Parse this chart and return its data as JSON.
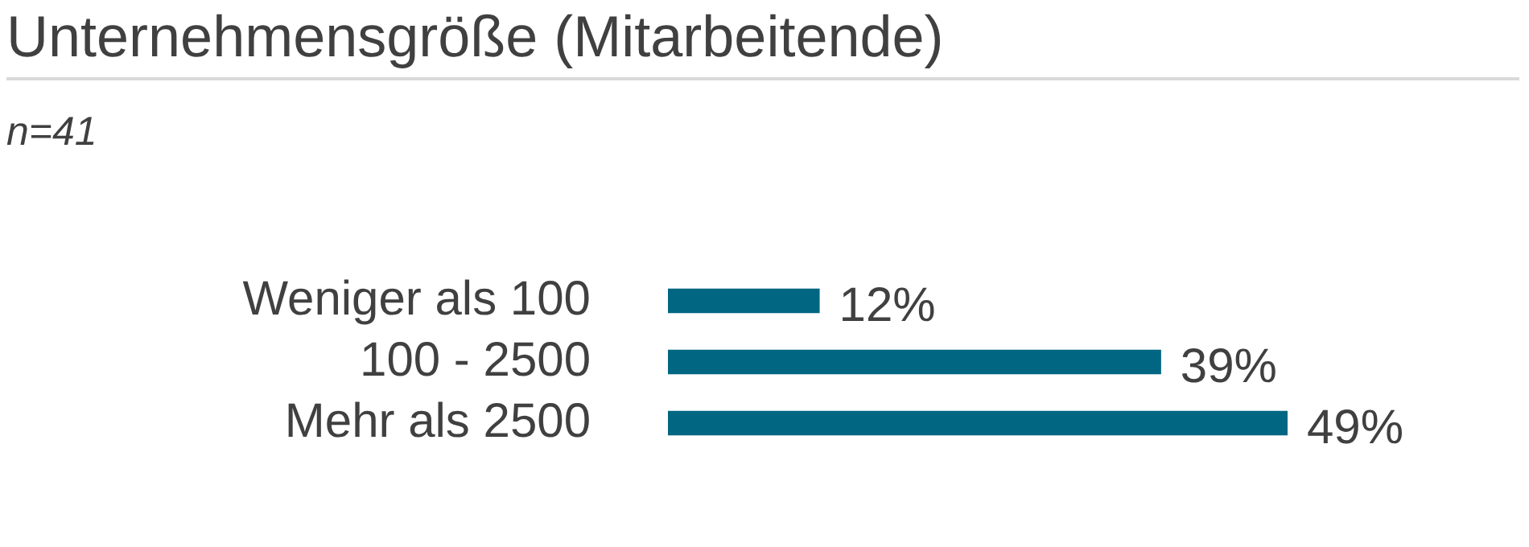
{
  "chart_data": {
    "type": "bar",
    "title": "Unternehmensgröße (Mitarbeitende)",
    "subtitle": "n=41",
    "orientation": "horizontal",
    "categories": [
      "Weniger als 100",
      "100 - 2500",
      "Mehr als 2500"
    ],
    "values": [
      12,
      39,
      49
    ],
    "color": "#006682",
    "value_labels": [
      "12%",
      "39%",
      "49%"
    ],
    "tick_labels": "y",
    "legend": false
  }
}
